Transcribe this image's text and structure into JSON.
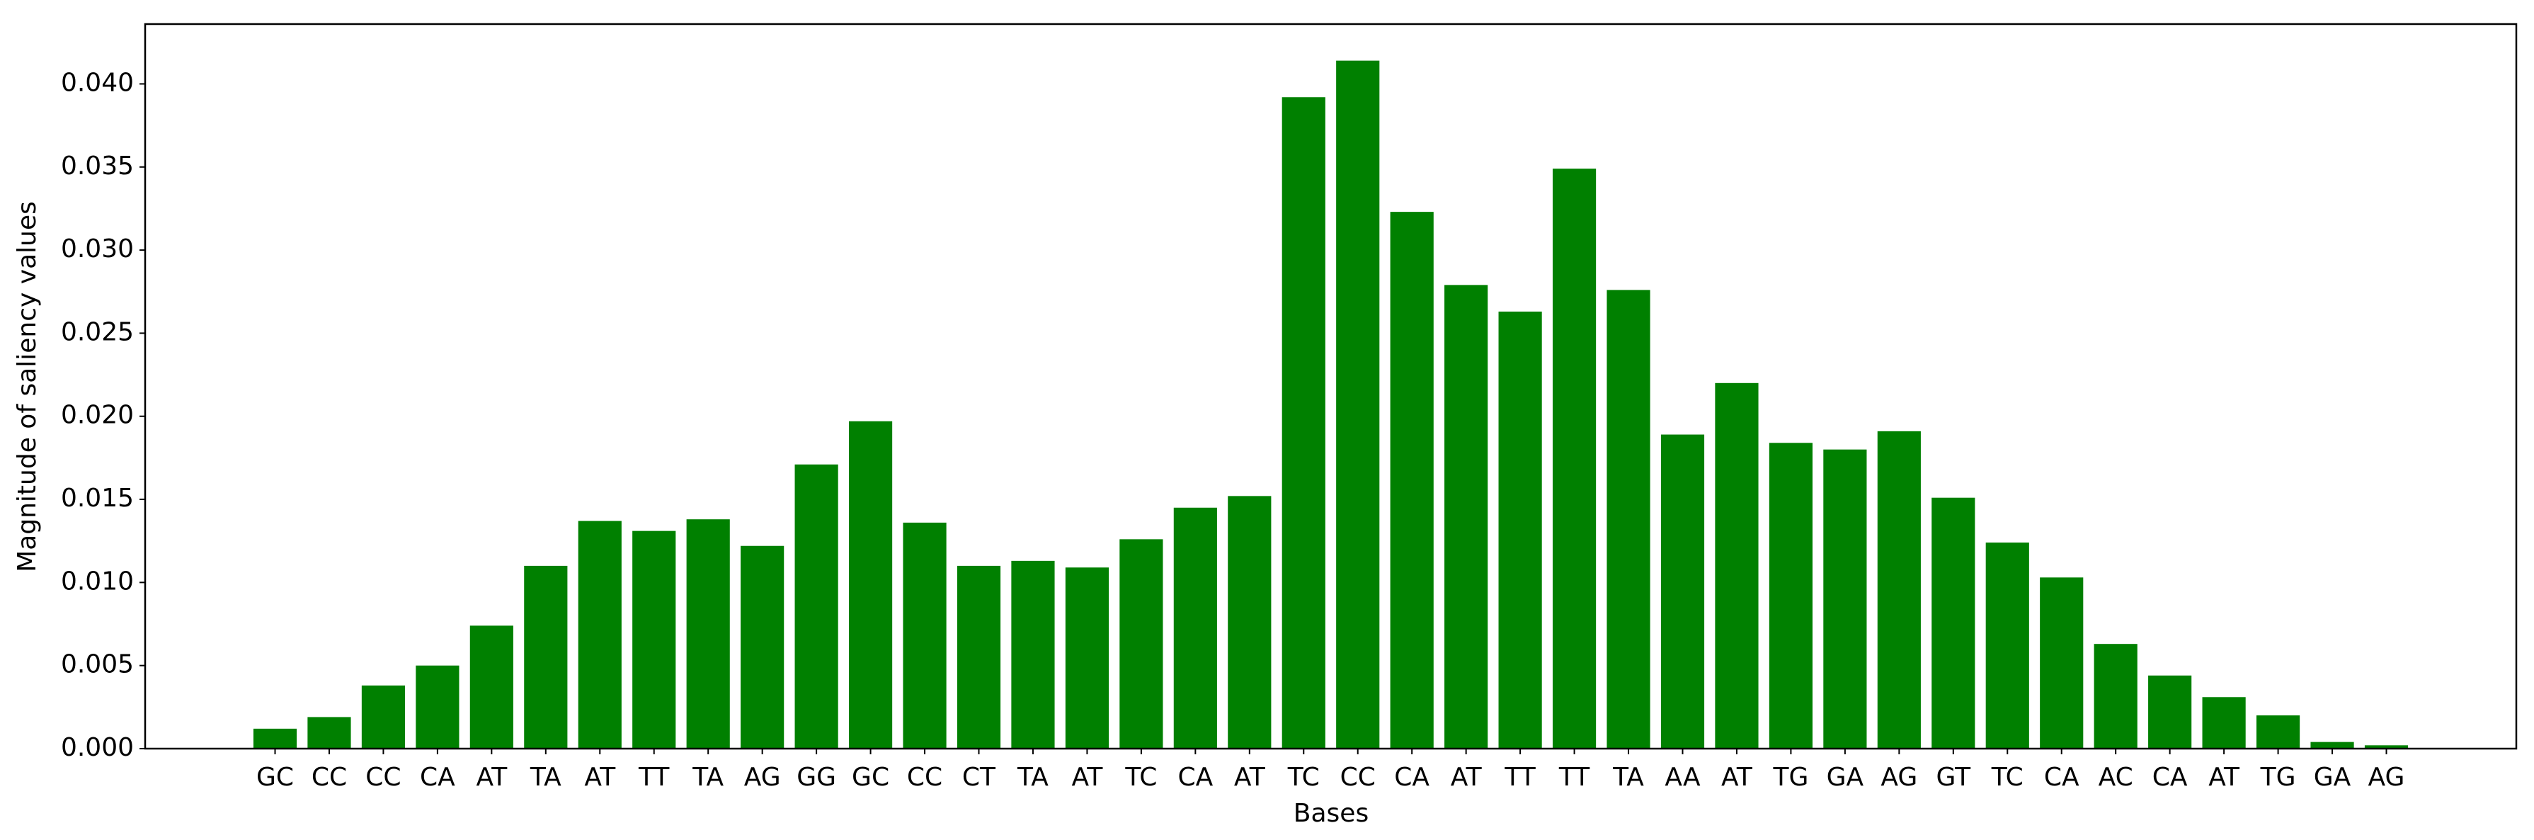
{
  "chart_data": {
    "type": "bar",
    "x_label": "Bases",
    "y_label": "Magnitude of saliency values",
    "color": "#008000",
    "categories": [
      "GC",
      "CC",
      "CC",
      "CA",
      "AT",
      "TA",
      "AT",
      "TT",
      "TA",
      "AG",
      "GG",
      "GC",
      "CC",
      "CT",
      "TA",
      "AT",
      "TC",
      "CA",
      "AT",
      "TC",
      "CC",
      "CA",
      "AT",
      "TT",
      "TT",
      "TA",
      "AA",
      "AT",
      "TG",
      "GA",
      "AG",
      "GT",
      "TC",
      "CA",
      "AC",
      "CA",
      "AT",
      "TG",
      "GA",
      "AG"
    ],
    "values": [
      0.0012,
      0.0019,
      0.0038,
      0.005,
      0.0074,
      0.011,
      0.0137,
      0.0131,
      0.0138,
      0.0122,
      0.0171,
      0.0197,
      0.0136,
      0.011,
      0.0113,
      0.0109,
      0.0126,
      0.0145,
      0.0152,
      0.0392,
      0.0414,
      0.0323,
      0.0279,
      0.0263,
      0.0349,
      0.0276,
      0.0189,
      0.022,
      0.0184,
      0.018,
      0.0191,
      0.0151,
      0.0124,
      0.0103,
      0.0063,
      0.0044,
      0.0031,
      0.002,
      0.0004,
      0.0002
    ],
    "ylim": [
      0,
      0.0436
    ],
    "yticks": [
      {
        "value": 0,
        "label": "0.000"
      },
      {
        "value": 0.005,
        "label": "0.005"
      },
      {
        "value": 0.01,
        "label": "0.010"
      },
      {
        "value": 0.015,
        "label": "0.015"
      },
      {
        "value": 0.02,
        "label": "0.020"
      },
      {
        "value": 0.025,
        "label": "0.025"
      },
      {
        "value": 0.03,
        "label": "0.030"
      },
      {
        "value": 0.035,
        "label": "0.035"
      },
      {
        "value": 0.04,
        "label": "0.040"
      }
    ],
    "grid": false
  }
}
